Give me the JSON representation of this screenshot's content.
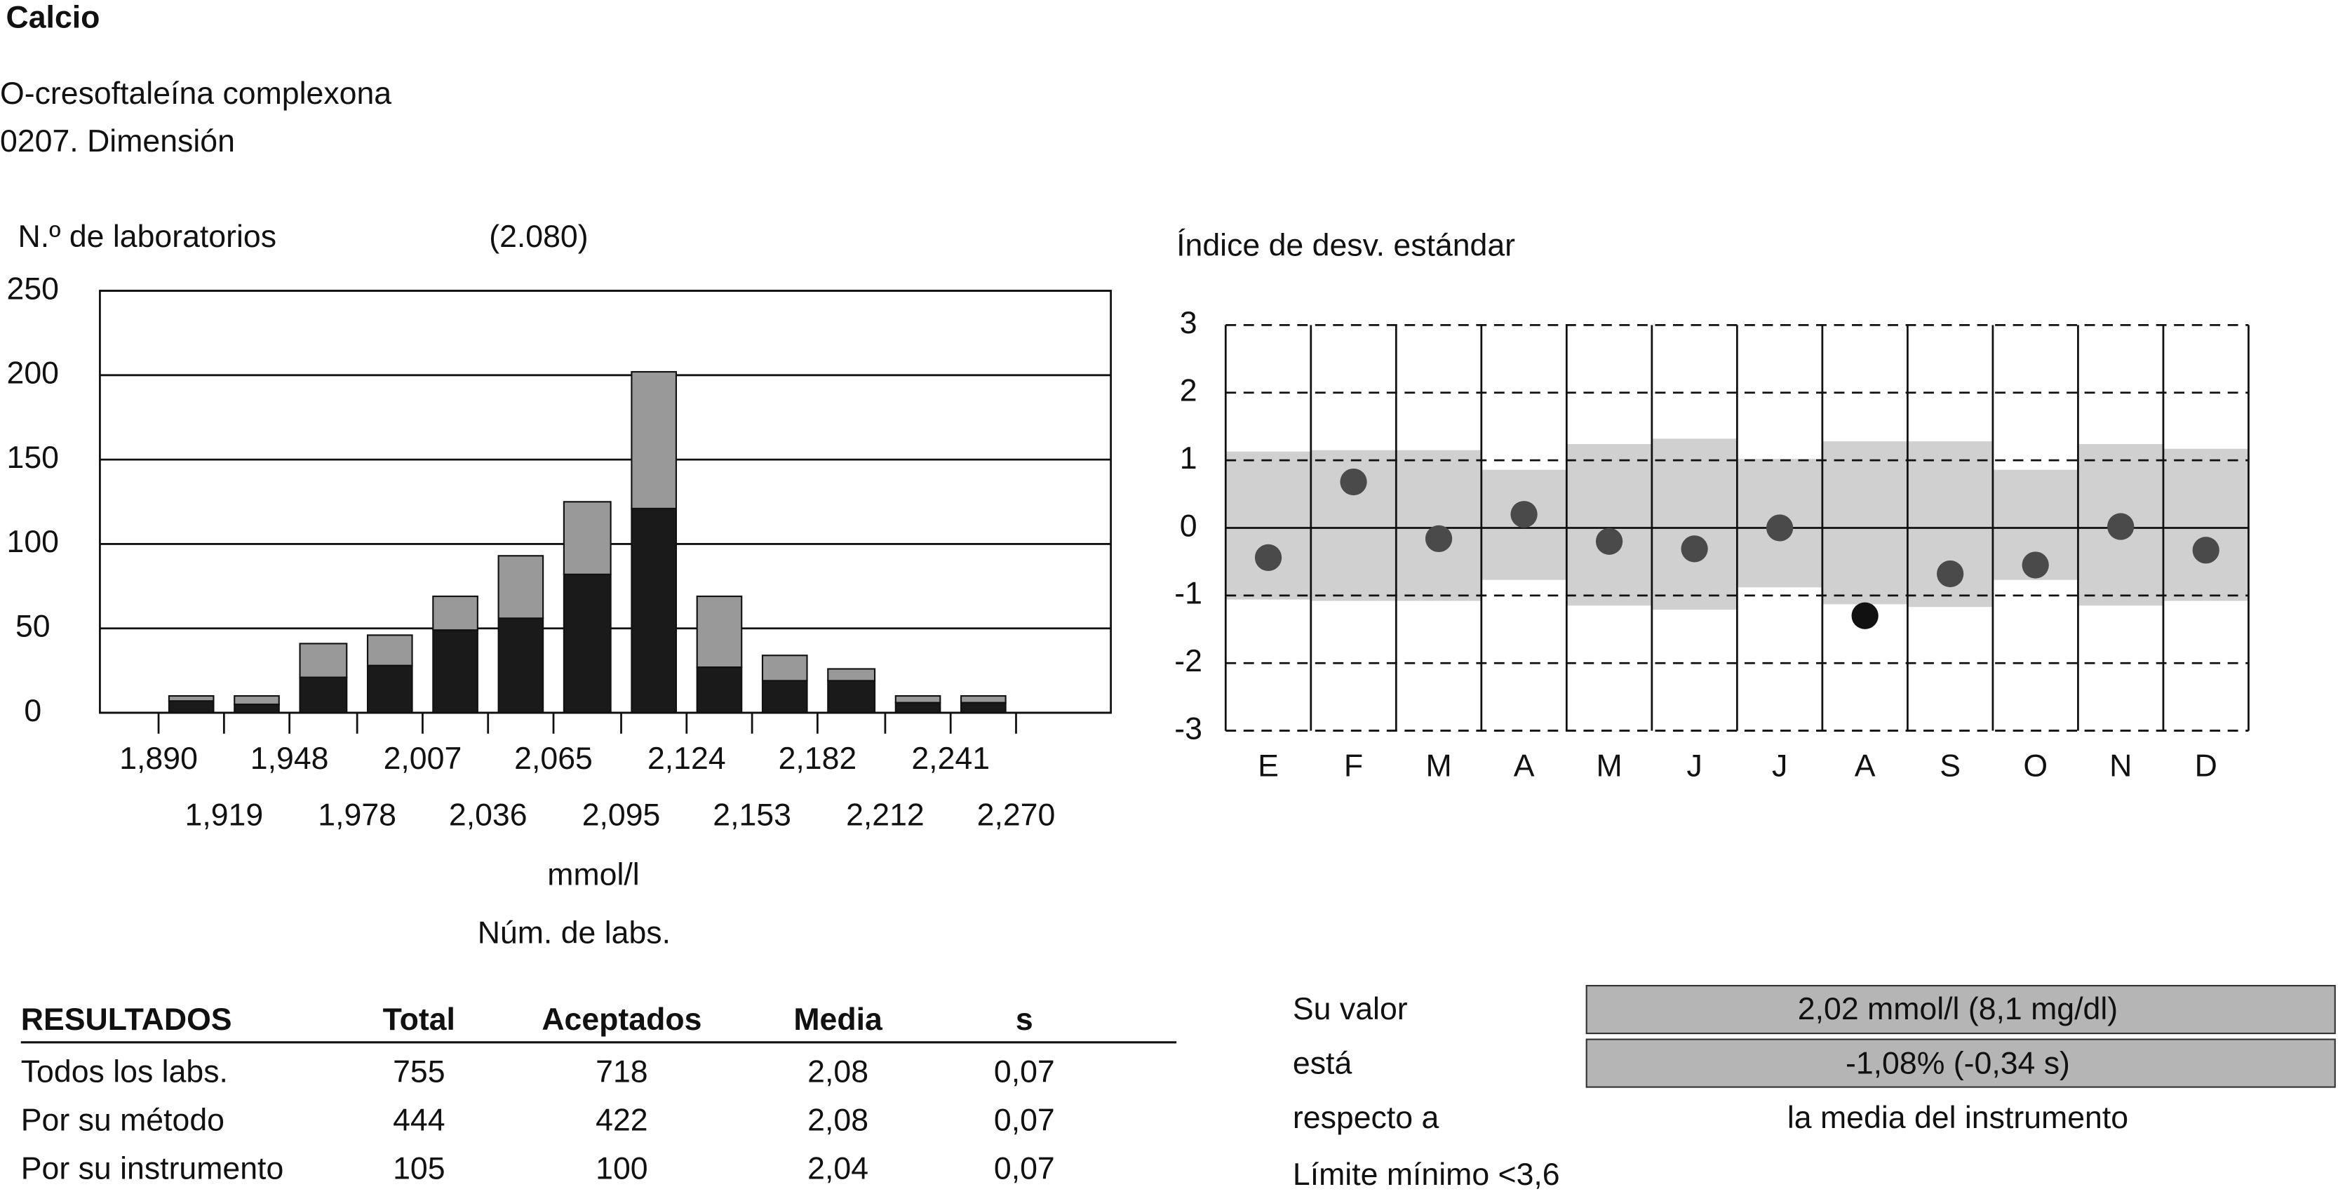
{
  "header": {
    "title": "Calcio",
    "method": "O-cresoftaleína complexona",
    "instrument": "0207. Dimensión"
  },
  "chart_data": [
    {
      "type": "histogram",
      "y_label": "N.º de laboratorios",
      "annotation": "(2.080)",
      "x_label": "mmol/l",
      "caption": "Núm. de labs.",
      "bins": [
        1.89,
        1.919,
        1.948,
        1.978,
        2.007,
        2.036,
        2.065,
        2.095,
        2.124,
        2.153,
        2.182,
        2.212,
        2.241,
        2.27
      ],
      "series": [
        {
          "color": "#1a1a1a",
          "values": [
            7,
            5,
            21,
            28,
            49,
            56,
            82,
            121,
            27,
            19,
            19,
            6,
            6
          ]
        },
        {
          "color": "#999999",
          "values": [
            3,
            5,
            20,
            18,
            20,
            37,
            43,
            81,
            42,
            15,
            7,
            4,
            4
          ]
        }
      ],
      "xlim": [
        1.864,
        2.312
      ],
      "xticks": [
        {
          "value": 1.89,
          "label": "1,890"
        },
        {
          "value": 1.919,
          "label": "1,919"
        },
        {
          "value": 1.948,
          "label": "1,948"
        },
        {
          "value": 1.978,
          "label": "1,978"
        },
        {
          "value": 2.007,
          "label": "2,007"
        },
        {
          "value": 2.036,
          "label": "2,036"
        },
        {
          "value": 2.065,
          "label": "2,065"
        },
        {
          "value": 2.095,
          "label": "2,095"
        },
        {
          "value": 2.124,
          "label": "2,124"
        },
        {
          "value": 2.153,
          "label": "2,153"
        },
        {
          "value": 2.182,
          "label": "2,182"
        },
        {
          "value": 2.212,
          "label": "2,212"
        },
        {
          "value": 2.241,
          "label": "2,241"
        },
        {
          "value": 2.27,
          "label": "2,270"
        }
      ],
      "ylim": [
        0,
        250
      ],
      "yticks": [
        0,
        50,
        100,
        150,
        200,
        250
      ],
      "grid": true
    },
    {
      "type": "dot",
      "y_label": "Índice de desv. estándar",
      "categories": [
        "E",
        "F",
        "M",
        "A",
        "M",
        "J",
        "J",
        "A",
        "S",
        "O",
        "N",
        "D"
      ],
      "bands": {
        "color": "#d0d0d0",
        "high": [
          1.13,
          1.15,
          1.15,
          0.86,
          1.24,
          1.32,
          1.02,
          1.28,
          1.28,
          0.86,
          1.24,
          1.17
        ],
        "low": [
          -1.06,
          -1.08,
          -1.08,
          -0.77,
          -1.15,
          -1.21,
          -0.88,
          -1.13,
          -1.17,
          -0.77,
          -1.15,
          -1.08
        ]
      },
      "values": [
        -0.44,
        0.68,
        -0.16,
        0.2,
        -0.2,
        -0.31,
        0,
        -1.3,
        -0.68,
        -0.55,
        0.02,
        -0.33
      ],
      "colors": [
        "#4a4a4a",
        "#4a4a4a",
        "#4a4a4a",
        "#4a4a4a",
        "#4a4a4a",
        "#4a4a4a",
        "#4a4a4a",
        "#111111",
        "#4a4a4a",
        "#4a4a4a",
        "#4a4a4a",
        "#4a4a4a"
      ],
      "ylim": [
        -3,
        3
      ],
      "yticks": [
        -3,
        -2,
        -1,
        0,
        1,
        2,
        3
      ],
      "grid": true
    }
  ],
  "results": {
    "header": [
      "RESULTADOS",
      "Total",
      "Aceptados",
      "Media",
      "s"
    ],
    "rows": [
      [
        "Todos los labs.",
        "755",
        "718",
        "2,08",
        "0,07"
      ],
      [
        "Por su método",
        "444",
        "422",
        "2,08",
        "0,07"
      ],
      [
        "Por su instrumento",
        "105",
        "100",
        "2,04",
        "0,07"
      ]
    ]
  },
  "summary": {
    "rows": [
      {
        "label": "Su valor",
        "value": "2,02 mmol/l (8,1 mg/dl)"
      },
      {
        "label": "está",
        "value": "-1,08% (-0,34 s)"
      },
      {
        "label": "respecto a",
        "value": "la media del instrumento"
      }
    ],
    "note": "Límite mínimo <3,6"
  }
}
